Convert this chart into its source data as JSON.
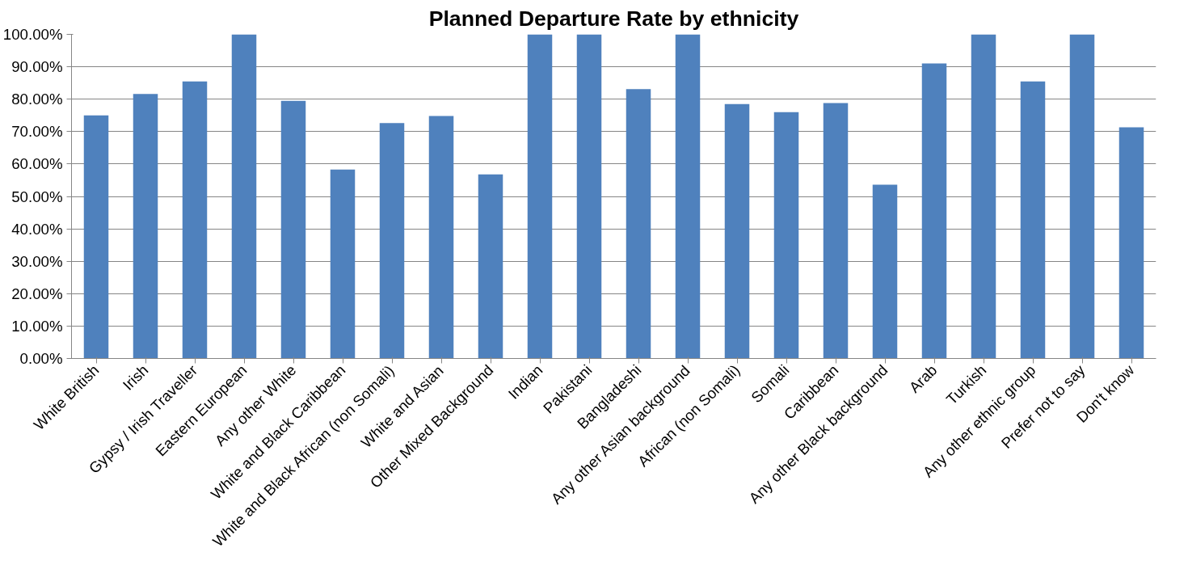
{
  "chart_data": {
    "type": "bar",
    "title": "Planned Departure Rate by ethnicity",
    "categories": [
      "White British",
      "Irish",
      "Gypsy / Irish Traveller",
      "Eastern European",
      "Any other White",
      "White and Black Caribbean",
      "White and Black African (non Somali)",
      "White and Asian",
      "Other Mixed Background",
      "Indian",
      "Pakistani",
      "Bangladeshi",
      "Any other Asian background",
      "African (non Somali)",
      "Somali",
      "Caribbean",
      "Any other Black background",
      "Arab",
      "Turkish",
      "Any other ethnic group",
      "Prefer not to say",
      "Don't know"
    ],
    "values": [
      75.0,
      81.6,
      85.5,
      100,
      79.5,
      58.3,
      72.6,
      74.8,
      56.8,
      100,
      100,
      83.1,
      100,
      78.5,
      76.0,
      78.8,
      53.6,
      91.0,
      100,
      85.5,
      100,
      71.3
    ],
    "color": "#4f81bd",
    "ylim": [
      0,
      100
    ],
    "yticks": [
      {
        "value": 0,
        "label": "0.00%"
      },
      {
        "value": 10,
        "label": "10.00%"
      },
      {
        "value": 20,
        "label": "20.00%"
      },
      {
        "value": 30,
        "label": "30.00%"
      },
      {
        "value": 40,
        "label": "40.00%"
      },
      {
        "value": 50,
        "label": "50.00%"
      },
      {
        "value": 60,
        "label": "60.00%"
      },
      {
        "value": 70,
        "label": "70.00%"
      },
      {
        "value": 80,
        "label": "80.00%"
      },
      {
        "value": 90,
        "label": "90.00%"
      },
      {
        "value": 100,
        "label": "100.00%"
      }
    ],
    "grid": "y"
  }
}
